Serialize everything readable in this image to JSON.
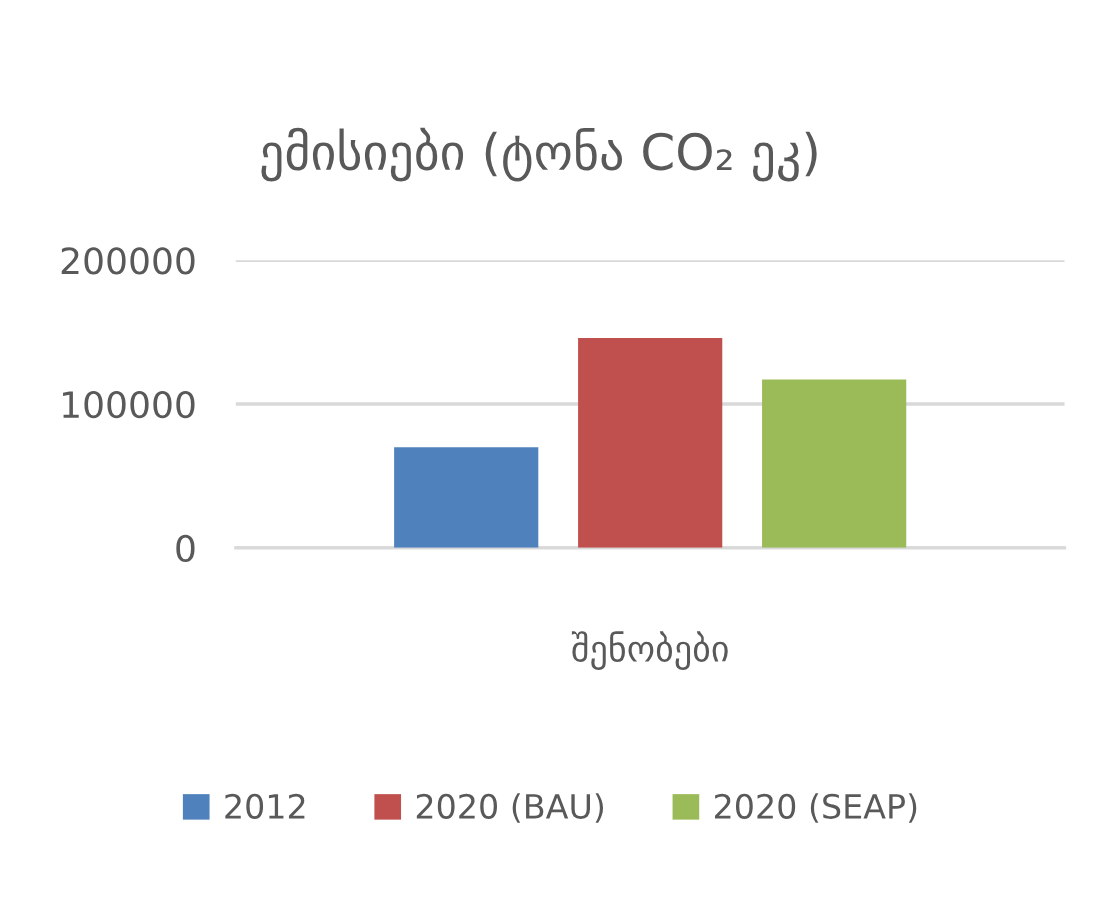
{
  "chart_data": {
    "type": "bar",
    "title": "ემისიები (ტონა CO₂ ეკ)",
    "categories": [
      "შენობები"
    ],
    "series": [
      {
        "name": "2012",
        "color": "#4f81bd",
        "values": [
          70000
        ]
      },
      {
        "name": "2020 (BAU)",
        "color": "#c0504d",
        "values": [
          146000
        ]
      },
      {
        "name": "2020 (SEAP)",
        "color": "#9bbb59",
        "values": [
          117000
        ]
      }
    ],
    "ylim": [
      0,
      200000
    ],
    "yticks": [
      0,
      100000,
      200000
    ],
    "grid": "y",
    "legend": "bottom"
  }
}
